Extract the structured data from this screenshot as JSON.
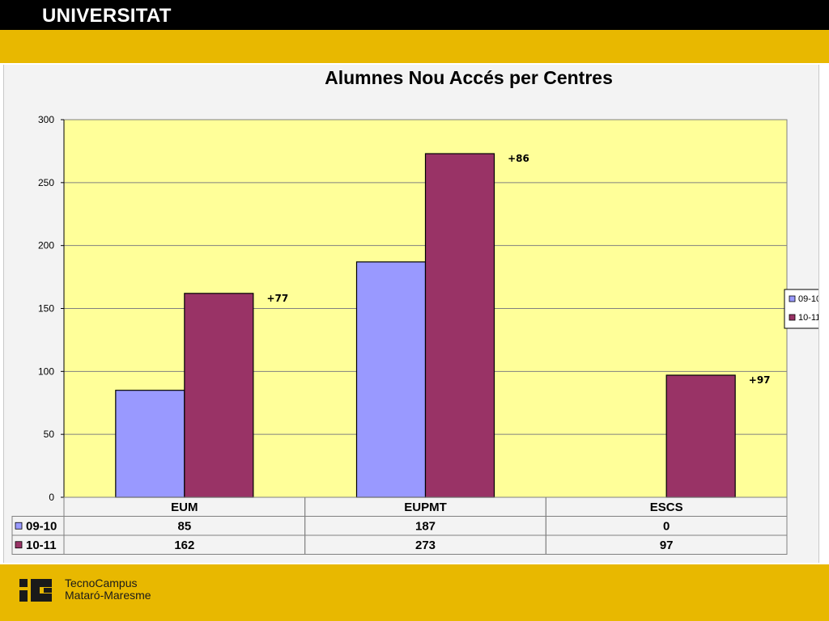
{
  "header": {
    "title": "UNIVERSITAT"
  },
  "footer": {
    "logo_line1": "TecnoCampus",
    "logo_line2": "Mataró-Maresme"
  },
  "colors": {
    "header_bg": "#000000",
    "band": "#e8b800",
    "plot_bg": "#ffff99",
    "series_0910": "#9999ff",
    "series_1011": "#993366"
  },
  "chart_data": {
    "type": "bar",
    "title": "Alumnes Nou Accés per Centres",
    "categories": [
      "EUM",
      "EUPMT",
      "ESCS"
    ],
    "series": [
      {
        "name": "09-10",
        "values": [
          85,
          187,
          0
        ],
        "color": "#9999ff"
      },
      {
        "name": "10-11",
        "values": [
          162,
          273,
          97
        ],
        "color": "#993366"
      }
    ],
    "annotations": [
      "+77",
      "+86",
      "+97"
    ],
    "ylim": [
      0,
      300
    ],
    "yticks": [
      0,
      50,
      100,
      150,
      200,
      250,
      300
    ],
    "grid": true,
    "legend": "right",
    "data_table": true
  }
}
